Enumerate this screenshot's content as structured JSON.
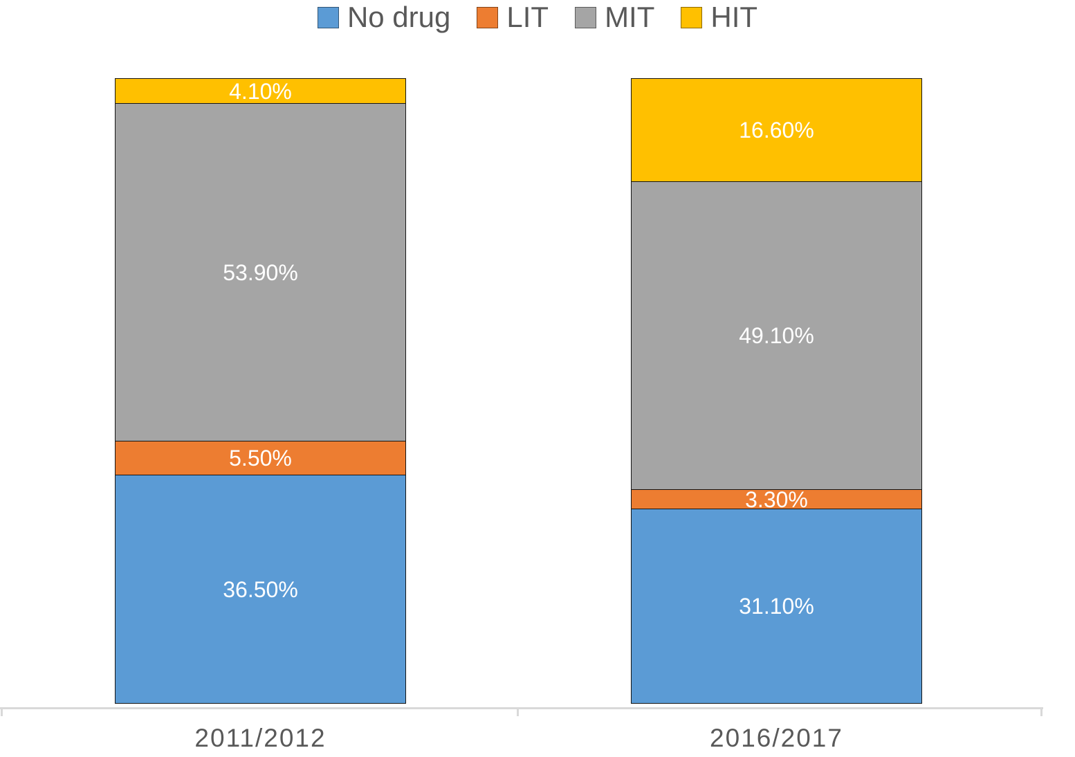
{
  "legend": {
    "items": [
      {
        "label": "No drug",
        "color": "#5B9BD5"
      },
      {
        "label": "LIT",
        "color": "#ED7D31"
      },
      {
        "label": "MIT",
        "color": "#A5A5A5"
      },
      {
        "label": "HIT",
        "color": "#FFC000"
      }
    ]
  },
  "chart_data": {
    "type": "bar",
    "stacked": true,
    "percent_stacked": true,
    "title": "",
    "xlabel": "",
    "ylabel": "",
    "categories": [
      "2011/2012",
      "2016/2017"
    ],
    "series": [
      {
        "name": "No drug",
        "color": "#5B9BD5",
        "values": [
          36.5,
          31.1
        ],
        "labels": [
          "36.50%",
          "31.10%"
        ]
      },
      {
        "name": "LIT",
        "color": "#ED7D31",
        "values": [
          5.5,
          3.3
        ],
        "labels": [
          "5.50%",
          "3.30%"
        ]
      },
      {
        "name": "MIT",
        "color": "#A5A5A5",
        "values": [
          53.9,
          49.1
        ],
        "labels": [
          "53.90%",
          "49.10%"
        ]
      },
      {
        "name": "HIT",
        "color": "#FFC000",
        "values": [
          4.1,
          16.6
        ],
        "labels": [
          "4.10%",
          "16.60%"
        ]
      }
    ],
    "stack_order_bottom_to_top": [
      "No drug",
      "LIT",
      "MIT",
      "HIT"
    ],
    "legend_position": "top",
    "grid": false,
    "ylim": [
      0,
      100
    ],
    "data_label_color": "#FFFFFF",
    "segment_border_color": "#141414",
    "axis_line_color": "#D9D9D9",
    "category_label_color": "#595959",
    "legend_text_color": "#595959"
  }
}
